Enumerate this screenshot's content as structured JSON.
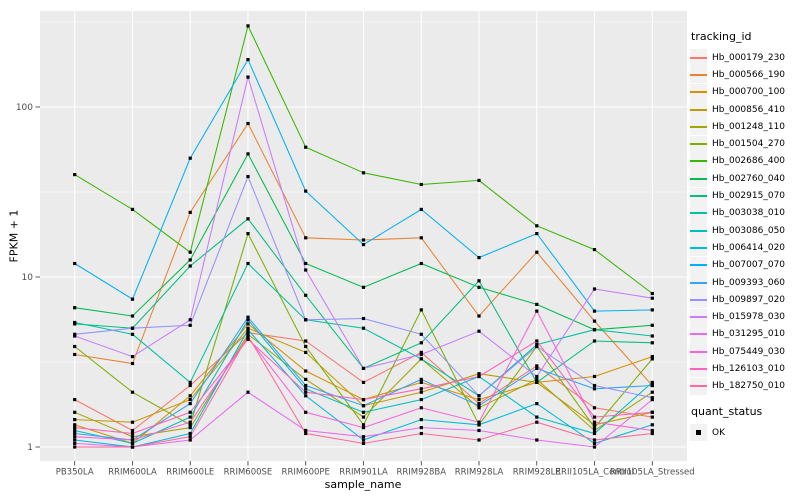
{
  "figure": {
    "background": "#FFFFFF",
    "panel_background": "#EBEBEB",
    "grid_color": "#FFFFFF",
    "axis_text_color": "#4D4D4D",
    "tick_color": "#333333",
    "y_axis": {
      "title": "FPKM + 1",
      "tick_labels": [
        "1",
        "10",
        "100"
      ]
    },
    "x_axis": {
      "title": "sample_name"
    },
    "legends": {
      "tracking": {
        "title": "tracking_id"
      },
      "quant": {
        "title": "quant_status",
        "items": [
          {
            "label": "OK",
            "marker": "black-filled-square"
          }
        ]
      }
    }
  },
  "chart_data": {
    "type": "line",
    "title": "",
    "xlabel": "sample_name",
    "ylabel": "FPKM + 1",
    "y_scale": "log10",
    "ylim": [
      1,
      370
    ],
    "y_ticks": [
      1,
      10,
      100
    ],
    "y_minor_ticks": [
      3.162,
      31.62,
      316.2
    ],
    "grid": true,
    "legend_position": "right",
    "legend_title": "tracking_id",
    "point_marker": "small black square (quant_status = OK)",
    "categories": [
      "PB350LA",
      "RRIM600LA",
      "RRIM600LE",
      "RRIM600SE",
      "RRIM600PE",
      "RRIM901LA",
      "RRIM928BA",
      "RRIM928LA",
      "RRIM928LE",
      "RRII105LA_Control",
      "RRII105LA_Stressed"
    ],
    "series": [
      {
        "name": "Hb_000179_230",
        "color": "#F8766D",
        "values": [
          1.9,
          1.25,
          2.3,
          4.7,
          4.2,
          2.4,
          3.6,
          1.8,
          3.0,
          1.7,
          1.5
        ]
      },
      {
        "name": "Hb_000566_190",
        "color": "#EA8331",
        "values": [
          3.5,
          3.1,
          24,
          80,
          17,
          16.5,
          17,
          5.9,
          14,
          5.5,
          2.3
        ]
      },
      {
        "name": "Hb_000700_100",
        "color": "#D89000",
        "values": [
          1.35,
          1.05,
          2.0,
          5.3,
          2.8,
          1.9,
          2.4,
          1.9,
          2.4,
          2.6,
          3.4
        ]
      },
      {
        "name": "Hb_000856_410",
        "color": "#C09B00",
        "values": [
          1.45,
          1.4,
          1.9,
          5.0,
          3.6,
          1.75,
          2.1,
          2.7,
          2.4,
          1.35,
          1.6
        ]
      },
      {
        "name": "Hb_001248_110",
        "color": "#A3A500",
        "values": [
          1.6,
          1.15,
          1.3,
          4.6,
          2.5,
          1.5,
          3.3,
          1.7,
          2.5,
          1.25,
          2.1
        ]
      },
      {
        "name": "Hb_001504_270",
        "color": "#7CAE00",
        "values": [
          3.9,
          2.1,
          1.35,
          18,
          3.9,
          1.35,
          6.4,
          1.35,
          3.9,
          1.3,
          3.3
        ]
      },
      {
        "name": "Hb_002686_400",
        "color": "#39B600",
        "values": [
          40,
          25,
          14,
          300,
          58,
          41,
          35,
          37,
          20,
          14.5,
          8
        ]
      },
      {
        "name": "Hb_002760_040",
        "color": "#00BB4E",
        "values": [
          6.6,
          5.9,
          12.6,
          53,
          12,
          8.7,
          12,
          8.7,
          6.9,
          4.9,
          5.2
        ]
      },
      {
        "name": "Hb_002915_070",
        "color": "#00BF7D",
        "values": [
          5.3,
          5.0,
          11.6,
          22,
          7.8,
          2.9,
          4.1,
          9.5,
          2.4,
          4.2,
          4.1
        ]
      },
      {
        "name": "Hb_003038_010",
        "color": "#00C1A3",
        "values": [
          5.4,
          4.6,
          2.4,
          12,
          5.6,
          5.0,
          3.3,
          2.0,
          4.0,
          4.9,
          4.5
        ]
      },
      {
        "name": "Hb_003086_050",
        "color": "#00BFC4",
        "values": [
          1.25,
          1.05,
          1.5,
          5.6,
          2.2,
          1.6,
          1.9,
          2.6,
          1.5,
          1.2,
          2.4
        ]
      },
      {
        "name": "Hb_006414_020",
        "color": "#00BAE0",
        "values": [
          1.1,
          1.0,
          1.2,
          4.9,
          2.0,
          1.1,
          1.45,
          1.35,
          1.8,
          1.05,
          1.35
        ]
      },
      {
        "name": "Hb_007007_070",
        "color": "#00B0F6",
        "values": [
          12,
          7.4,
          50,
          190,
          32,
          15.5,
          25,
          13,
          18,
          6.3,
          6.4
        ]
      },
      {
        "name": "Hb_009393_060",
        "color": "#35A2FF",
        "values": [
          1.2,
          1.1,
          1.8,
          5.8,
          2.3,
          1.75,
          2.5,
          1.75,
          2.9,
          2.2,
          2.3
        ]
      },
      {
        "name": "Hb_009897_020",
        "color": "#9590FF",
        "values": [
          4.6,
          5.0,
          5.2,
          39,
          5.6,
          5.7,
          4.6,
          2.0,
          3.9,
          2.3,
          1.95
        ]
      },
      {
        "name": "Hb_015978_030",
        "color": "#C77CFF",
        "values": [
          4.5,
          3.4,
          5.6,
          150,
          11,
          2.9,
          3.5,
          4.8,
          2.6,
          8.5,
          7.5
        ]
      },
      {
        "name": "Hb_031295_010",
        "color": "#E76BF3",
        "values": [
          1.05,
          1.0,
          1.1,
          2.1,
          1.25,
          1.15,
          1.3,
          1.25,
          1.1,
          1.0,
          1.9
        ]
      },
      {
        "name": "Hb_075449_030",
        "color": "#FA62DB",
        "values": [
          1.15,
          1.1,
          1.4,
          4.4,
          1.6,
          1.3,
          1.7,
          1.4,
          6.3,
          1.4,
          1.25
        ]
      },
      {
        "name": "Hb_126103_010",
        "color": "#FF62BC",
        "values": [
          1.3,
          1.2,
          1.6,
          4.3,
          2.1,
          1.9,
          2.2,
          2.6,
          4.2,
          1.5,
          1.6
        ]
      },
      {
        "name": "Hb_182750_010",
        "color": "#FF6A98",
        "values": [
          1.0,
          1.0,
          1.15,
          4.5,
          1.2,
          1.05,
          1.2,
          1.1,
          1.4,
          1.1,
          1.2
        ]
      }
    ]
  }
}
